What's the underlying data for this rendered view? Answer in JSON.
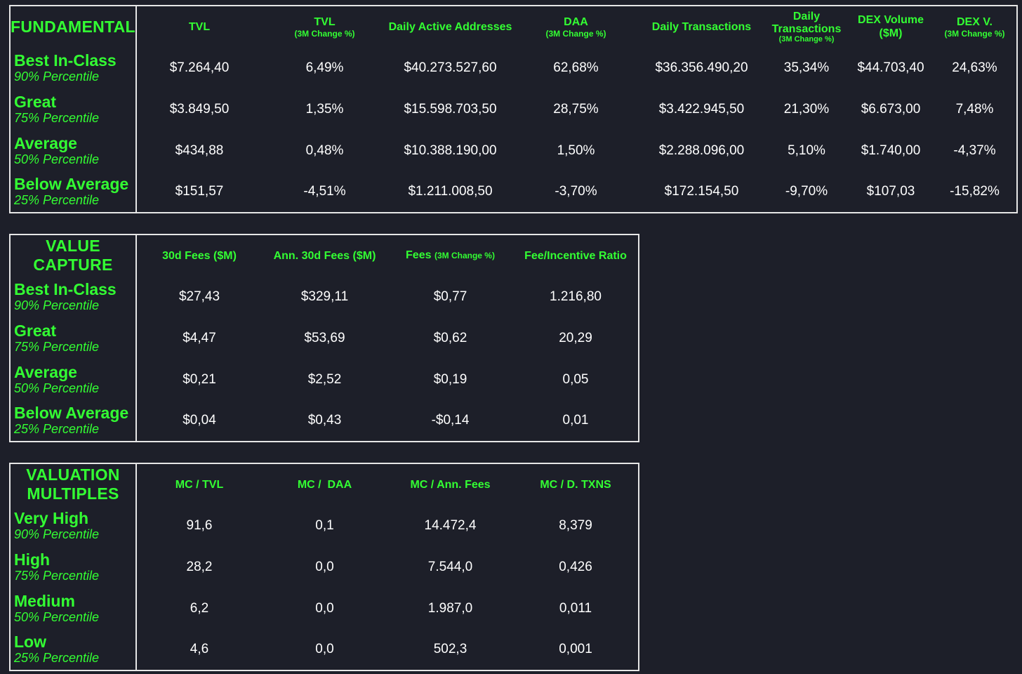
{
  "fundamentals": {
    "title": "FUNDAMENTALS",
    "columns": [
      {
        "label": "TVL",
        "sub": ""
      },
      {
        "label": "TVL",
        "sub": "(3M Change %)"
      },
      {
        "label": "Daily Active Addresses",
        "sub": ""
      },
      {
        "label": "DAA",
        "sub": "(3M Change %)"
      },
      {
        "label": "Daily Transactions",
        "sub": ""
      },
      {
        "label": "Daily Transactions",
        "sub": "(3M Change %)"
      },
      {
        "label": "DEX Volume ($M)",
        "sub": ""
      },
      {
        "label": "DEX V.",
        "sub": "(3M Change %)"
      }
    ],
    "rows": [
      {
        "tier": "Best In-Class",
        "percentile": "90% Percentile",
        "values": [
          "$7.264,40",
          "6,49%",
          "$40.273.527,60",
          "62,68%",
          "$36.356.490,20",
          "35,34%",
          "$44.703,40",
          "24,63%"
        ]
      },
      {
        "tier": "Great",
        "percentile": "75% Percentile",
        "values": [
          "$3.849,50",
          "1,35%",
          "$15.598.703,50",
          "28,75%",
          "$3.422.945,50",
          "21,30%",
          "$6.673,00",
          "7,48%"
        ]
      },
      {
        "tier": "Average",
        "percentile": "50% Percentile",
        "values": [
          "$434,88",
          "0,48%",
          "$10.388.190,00",
          "1,50%",
          "$2.288.096,00",
          "5,10%",
          "$1.740,00",
          "-4,37%"
        ]
      },
      {
        "tier": "Below Average",
        "percentile": "25% Percentile",
        "values": [
          "$151,57",
          "-4,51%",
          "$1.211.008,50",
          "-3,70%",
          "$172.154,50",
          "-9,70%",
          "$107,03",
          "-15,82%"
        ]
      }
    ]
  },
  "value_capture": {
    "title": "VALUE CAPTURE",
    "columns": [
      {
        "label": "30d Fees ($M)",
        "sub": ""
      },
      {
        "label": "Ann. 30d Fees ($M)",
        "sub": ""
      },
      {
        "label": "Fees",
        "sub": "(3M Change %)"
      },
      {
        "label": "Fee/Incentive Ratio",
        "sub": ""
      }
    ],
    "rows": [
      {
        "tier": "Best In-Class",
        "percentile": "90% Percentile",
        "values": [
          "$27,43",
          "$329,11",
          "$0,77",
          "1.216,80"
        ]
      },
      {
        "tier": "Great",
        "percentile": "75% Percentile",
        "values": [
          "$4,47",
          "$53,69",
          "$0,62",
          "20,29"
        ]
      },
      {
        "tier": "Average",
        "percentile": "50% Percentile",
        "values": [
          "$0,21",
          "$2,52",
          "$0,19",
          "0,05"
        ]
      },
      {
        "tier": "Below Average",
        "percentile": "25% Percentile",
        "values": [
          "$0,04",
          "$0,43",
          "-$0,14",
          "0,01"
        ]
      }
    ]
  },
  "valuation": {
    "title_line1": "VALUATION",
    "title_line2": "MULTIPLES",
    "columns": [
      {
        "label": "MC / TVL",
        "sub": ""
      },
      {
        "label": "MC /  DAA",
        "sub": ""
      },
      {
        "label": "MC / Ann. Fees",
        "sub": ""
      },
      {
        "label": "MC / D. TXNS",
        "sub": ""
      }
    ],
    "rows": [
      {
        "tier": "Very High",
        "percentile": "90% Percentile",
        "values": [
          "91,6",
          "0,1",
          "14.472,4",
          "8,379"
        ]
      },
      {
        "tier": "High",
        "percentile": "75% Percentile",
        "values": [
          "28,2",
          "0,0",
          "7.544,0",
          "0,426"
        ]
      },
      {
        "tier": "Medium",
        "percentile": "50% Percentile",
        "values": [
          "6,2",
          "0,0",
          "1.987,0",
          "0,011"
        ]
      },
      {
        "tier": "Low",
        "percentile": "25% Percentile",
        "values": [
          "4,6",
          "0,0",
          "502,3",
          "0,001"
        ]
      }
    ]
  }
}
